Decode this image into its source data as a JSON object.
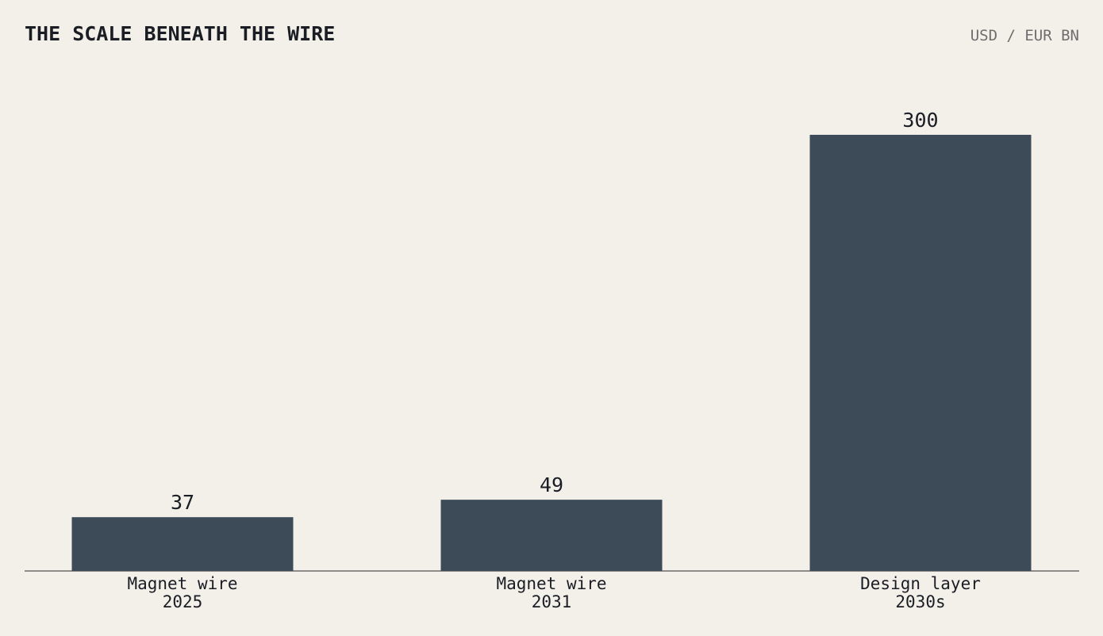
{
  "chart_data": {
    "type": "bar",
    "title": "THE SCALE BENEATH THE WIRE",
    "subtitle": "USD / EUR BN",
    "categories": [
      "Magnet wire\n2025",
      "Magnet wire\n2031",
      "Design layer\n2030s"
    ],
    "values": [
      37,
      49,
      300
    ],
    "color": "#3d4b59"
  }
}
